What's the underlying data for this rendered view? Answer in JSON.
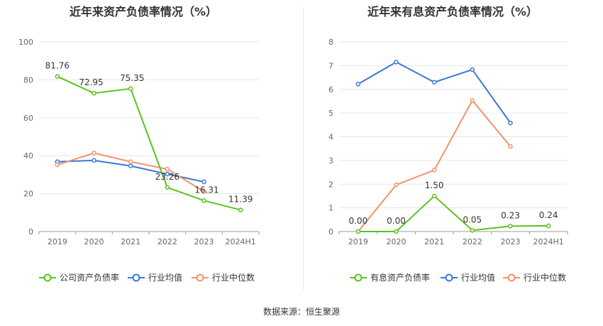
{
  "footer": {
    "source": "数据来源：恒生聚源"
  },
  "chart_data": [
    {
      "type": "line",
      "title": "近年来资产负债率情况（%）",
      "categories": [
        "2019",
        "2020",
        "2021",
        "2022",
        "2023",
        "2024H1"
      ],
      "ylim": [
        0,
        100
      ],
      "yticks": [
        0,
        20,
        40,
        60,
        80,
        100
      ],
      "grid": true,
      "legend_placement": "bottom",
      "series": [
        {
          "name": "公司资产负债率",
          "color": "#5cc21f",
          "values": [
            81.76,
            72.95,
            75.35,
            23.26,
            16.31,
            11.39
          ],
          "labels": [
            "81.76",
            "72.95",
            "75.35",
            "23.26",
            "16.31",
            "11.39"
          ]
        },
        {
          "name": "行业均值",
          "color": "#3a78d8",
          "values": [
            36.8,
            37.5,
            34.6,
            30.3,
            26.2,
            null
          ]
        },
        {
          "name": "行业中位数",
          "color": "#f4936a",
          "values": [
            35.2,
            41.4,
            36.8,
            32.9,
            21.1,
            null
          ]
        }
      ]
    },
    {
      "type": "line",
      "title": "近年来有息资产负债率情况（%）",
      "categories": [
        "2019",
        "2020",
        "2021",
        "2022",
        "2023",
        "2024H1"
      ],
      "ylim": [
        0,
        8
      ],
      "yticks": [
        0,
        1,
        2,
        3,
        4,
        5,
        6,
        7,
        8
      ],
      "grid": true,
      "legend_placement": "bottom",
      "series": [
        {
          "name": "有息资产负债率",
          "color": "#5cc21f",
          "values": [
            0.0,
            0.0,
            1.5,
            0.05,
            0.23,
            0.24
          ],
          "labels": [
            "0.00",
            "0.00",
            "1.50",
            "0.05",
            "0.23",
            "0.24"
          ]
        },
        {
          "name": "行业均值",
          "color": "#3a78d8",
          "values": [
            6.22,
            7.15,
            6.3,
            6.83,
            4.58,
            null
          ]
        },
        {
          "name": "行业中位数",
          "color": "#f4936a",
          "values": [
            0.0,
            1.97,
            2.59,
            5.53,
            3.59,
            null
          ]
        }
      ]
    }
  ]
}
